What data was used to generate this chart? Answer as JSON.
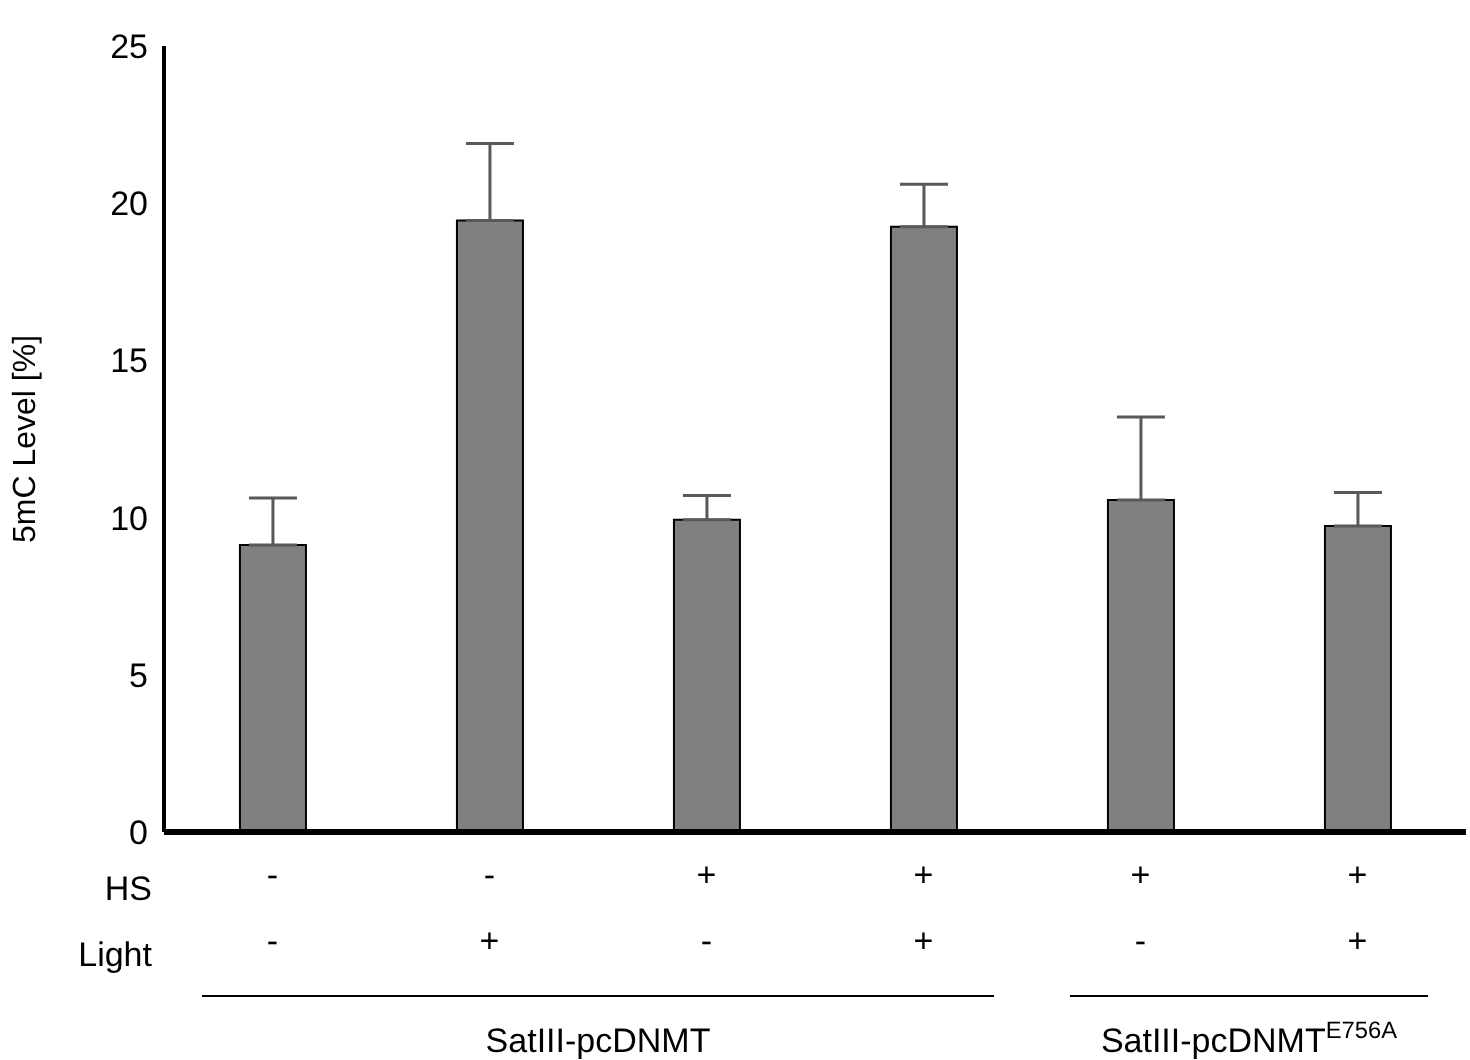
{
  "chart_data": {
    "type": "bar",
    "ylabel": "5mC Level [%]",
    "categories": [
      "-\n-",
      "-\n+",
      "+\n-",
      "+\n+",
      "+\n-",
      "+\n+"
    ],
    "values": [
      9.13,
      19.45,
      9.93,
      19.25,
      10.56,
      9.73
    ],
    "errors": [
      [
        9.13,
        10.62
      ],
      [
        19.45,
        21.9
      ],
      [
        9.93,
        10.7
      ],
      [
        19.25,
        20.6
      ],
      [
        10.56,
        13.2
      ],
      [
        9.73,
        10.8
      ]
    ],
    "color": "#808080",
    "ylim": [
      0,
      25
    ],
    "yticks": [
      0,
      5,
      10,
      15,
      20,
      25
    ],
    "grid": false,
    "annotations": [
      "HS",
      "Light",
      "SatIII-pcDNMT",
      "SatIII-pcDNMT$^{E756A}$"
    ]
  }
}
